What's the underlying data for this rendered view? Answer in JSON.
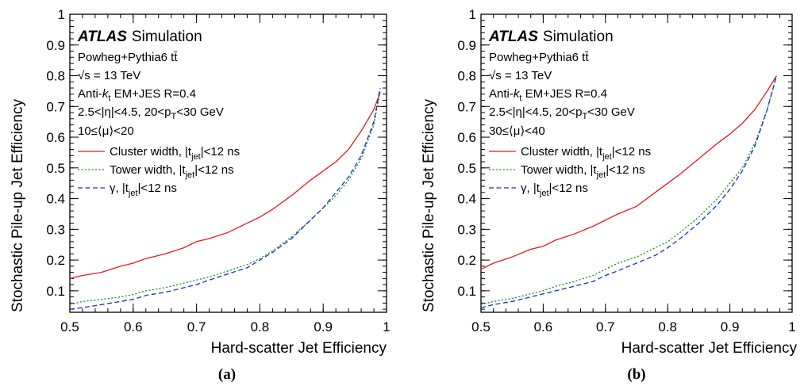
{
  "chart_data": [
    {
      "type": "line",
      "panel_label": "(a)",
      "xlabel": "Hard-scatter Jet Efficiency",
      "ylabel": "Stochastic Pile-up Jet Efficiency",
      "xlim": [
        0.5,
        1.0
      ],
      "ylim": [
        0.03,
        1.0
      ],
      "x_ticks": [
        "0.5",
        "0.6",
        "0.7",
        "0.8",
        "0.9",
        "1"
      ],
      "y_ticks": [
        "0.1",
        "0.2",
        "0.3",
        "0.4",
        "0.5",
        "0.6",
        "0.7",
        "0.8",
        "0.9",
        "1"
      ],
      "annotations": {
        "atlas": "ATLAS",
        "simulation": "Simulation",
        "generator": "Powheg+Pythia6 tt̄",
        "energy": "√s = 13 TeV",
        "jets_prefix": "Anti-",
        "jets_k": "k",
        "jets_sub": "t",
        "jets_suffix": " EM+JES R=0.4",
        "kin_prefix": "2.5<|η|<4.5, 20<p",
        "kin_sub": "T",
        "kin_suffix": "<30 GeV",
        "pileup": "10≤⟨μ⟩<20"
      },
      "series": [
        {
          "name_main": "Cluster width, |t",
          "name_sub": "jet",
          "name_end": "|<12 ns",
          "color": "#e8191c",
          "dash": "solid",
          "x": [
            0.5,
            0.52,
            0.55,
            0.58,
            0.6,
            0.62,
            0.65,
            0.68,
            0.7,
            0.72,
            0.75,
            0.78,
            0.8,
            0.82,
            0.85,
            0.88,
            0.9,
            0.92,
            0.94,
            0.96,
            0.98,
            0.99
          ],
          "y": [
            0.14,
            0.15,
            0.16,
            0.18,
            0.19,
            0.205,
            0.22,
            0.24,
            0.26,
            0.27,
            0.29,
            0.32,
            0.34,
            0.365,
            0.41,
            0.46,
            0.49,
            0.52,
            0.56,
            0.62,
            0.69,
            0.745
          ]
        },
        {
          "name_main": "Tower width, |t",
          "name_sub": "jet",
          "name_end": "|<12 ns",
          "color": "#1a9a1a",
          "dash": "dotted",
          "x": [
            0.5,
            0.52,
            0.55,
            0.58,
            0.6,
            0.62,
            0.65,
            0.68,
            0.7,
            0.72,
            0.75,
            0.78,
            0.8,
            0.82,
            0.85,
            0.88,
            0.9,
            0.92,
            0.94,
            0.96,
            0.98,
            0.99
          ],
          "y": [
            0.055,
            0.065,
            0.072,
            0.08,
            0.088,
            0.1,
            0.11,
            0.125,
            0.135,
            0.145,
            0.165,
            0.185,
            0.205,
            0.23,
            0.275,
            0.33,
            0.37,
            0.41,
            0.46,
            0.53,
            0.64,
            0.75
          ]
        },
        {
          "name_main": "γ, |t",
          "name_sub": "jet",
          "name_end": "|<12 ns",
          "color": "#1c2bd6",
          "dash": "dashed",
          "x": [
            0.5,
            0.52,
            0.55,
            0.58,
            0.6,
            0.62,
            0.65,
            0.68,
            0.7,
            0.72,
            0.75,
            0.78,
            0.8,
            0.82,
            0.85,
            0.88,
            0.9,
            0.92,
            0.94,
            0.96,
            0.98,
            0.99
          ],
          "y": [
            0.04,
            0.045,
            0.055,
            0.065,
            0.072,
            0.085,
            0.095,
            0.11,
            0.12,
            0.135,
            0.155,
            0.175,
            0.2,
            0.225,
            0.27,
            0.33,
            0.37,
            0.42,
            0.47,
            0.54,
            0.65,
            0.76
          ]
        }
      ]
    },
    {
      "type": "line",
      "panel_label": "(b)",
      "xlabel": "Hard-scatter Jet Efficiency",
      "ylabel": "Stochastic Pile-up Jet Efficiency",
      "xlim": [
        0.5,
        1.0
      ],
      "ylim": [
        0.03,
        1.0
      ],
      "x_ticks": [
        "0.5",
        "0.6",
        "0.7",
        "0.8",
        "0.9",
        "1"
      ],
      "y_ticks": [
        "0.1",
        "0.2",
        "0.3",
        "0.4",
        "0.5",
        "0.6",
        "0.7",
        "0.8",
        "0.9",
        "1"
      ],
      "annotations": {
        "atlas": "ATLAS",
        "simulation": "Simulation",
        "generator": "Powheg+Pythia6 tt̄",
        "energy": "√s = 13 TeV",
        "jets_prefix": "Anti-",
        "jets_k": "k",
        "jets_sub": "t",
        "jets_suffix": " EM+JES R=0.4",
        "kin_prefix": "2.5<|η|<4.5, 20<p",
        "kin_sub": "T",
        "kin_suffix": "<30 GeV",
        "pileup": "30≤⟨μ⟩<40"
      },
      "series": [
        {
          "name_main": "Cluster width, |t",
          "name_sub": "jet",
          "name_end": "|<12 ns",
          "color": "#e8191c",
          "dash": "solid",
          "x": [
            0.5,
            0.52,
            0.55,
            0.58,
            0.6,
            0.62,
            0.65,
            0.68,
            0.7,
            0.72,
            0.75,
            0.78,
            0.8,
            0.82,
            0.85,
            0.88,
            0.9,
            0.92,
            0.94,
            0.96,
            0.975
          ],
          "y": [
            0.17,
            0.19,
            0.21,
            0.235,
            0.245,
            0.265,
            0.285,
            0.31,
            0.33,
            0.35,
            0.375,
            0.42,
            0.45,
            0.48,
            0.53,
            0.58,
            0.61,
            0.645,
            0.69,
            0.75,
            0.8
          ]
        },
        {
          "name_main": "Tower width, |t",
          "name_sub": "jet",
          "name_end": "|<12 ns",
          "color": "#1a9a1a",
          "dash": "dotted",
          "x": [
            0.5,
            0.52,
            0.55,
            0.58,
            0.6,
            0.62,
            0.65,
            0.68,
            0.7,
            0.72,
            0.75,
            0.78,
            0.8,
            0.82,
            0.85,
            0.88,
            0.9,
            0.92,
            0.94,
            0.96,
            0.975
          ],
          "y": [
            0.055,
            0.065,
            0.075,
            0.09,
            0.1,
            0.115,
            0.13,
            0.15,
            0.17,
            0.19,
            0.21,
            0.24,
            0.26,
            0.29,
            0.34,
            0.4,
            0.45,
            0.5,
            0.58,
            0.69,
            0.8
          ]
        },
        {
          "name_main": "γ, |t",
          "name_sub": "jet",
          "name_end": "|<12 ns",
          "color": "#1c2bd6",
          "dash": "dashed",
          "x": [
            0.5,
            0.52,
            0.55,
            0.58,
            0.6,
            0.62,
            0.65,
            0.68,
            0.7,
            0.72,
            0.75,
            0.78,
            0.8,
            0.82,
            0.85,
            0.88,
            0.9,
            0.92,
            0.94,
            0.96,
            0.975
          ],
          "y": [
            0.045,
            0.055,
            0.065,
            0.08,
            0.09,
            0.1,
            0.115,
            0.13,
            0.15,
            0.165,
            0.19,
            0.215,
            0.24,
            0.27,
            0.32,
            0.38,
            0.43,
            0.49,
            0.57,
            0.69,
            0.8
          ]
        }
      ]
    }
  ]
}
